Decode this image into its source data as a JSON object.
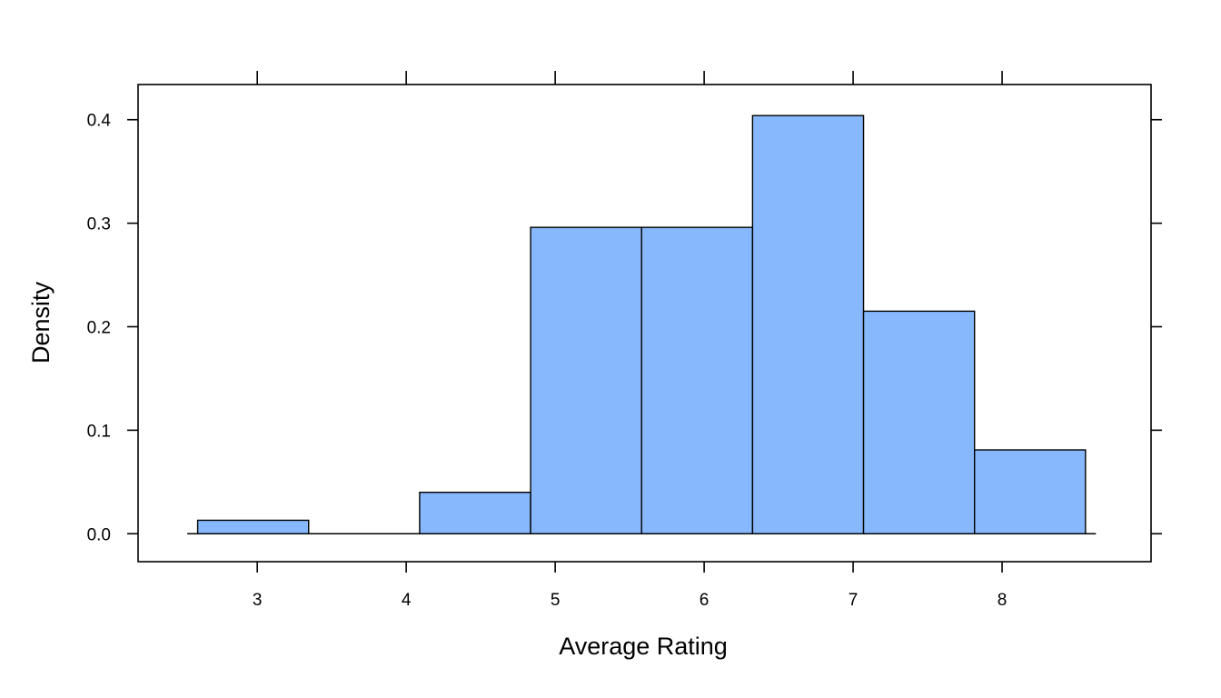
{
  "chart_data": {
    "type": "bar",
    "subtype": "histogram",
    "xlabel": "Average Rating",
    "ylabel": "Density",
    "xlim": [
      2.2,
      9.0
    ],
    "ylim": [
      -0.027,
      0.434
    ],
    "xticks": [
      3,
      4,
      5,
      6,
      7,
      8
    ],
    "yticks": [
      0.0,
      0.1,
      0.2,
      0.3,
      0.4
    ],
    "ytick_labels": [
      "0.0",
      "0.1",
      "0.2",
      "0.3",
      "0.4"
    ],
    "bins": [
      {
        "x0": 2.6,
        "x1": 3.345,
        "density": 0.013
      },
      {
        "x0": 3.345,
        "x1": 4.09,
        "density": 0.0
      },
      {
        "x0": 4.09,
        "x1": 4.835,
        "density": 0.04
      },
      {
        "x0": 4.835,
        "x1": 5.58,
        "density": 0.296
      },
      {
        "x0": 5.58,
        "x1": 6.325,
        "density": 0.296
      },
      {
        "x0": 6.325,
        "x1": 7.07,
        "density": 0.404
      },
      {
        "x0": 7.07,
        "x1": 7.815,
        "density": 0.215
      },
      {
        "x0": 7.815,
        "x1": 8.56,
        "density": 0.081
      }
    ],
    "baseline_range": [
      2.53,
      8.63
    ],
    "bar_color": "#87B8FD",
    "grid": false,
    "legend": "none"
  }
}
